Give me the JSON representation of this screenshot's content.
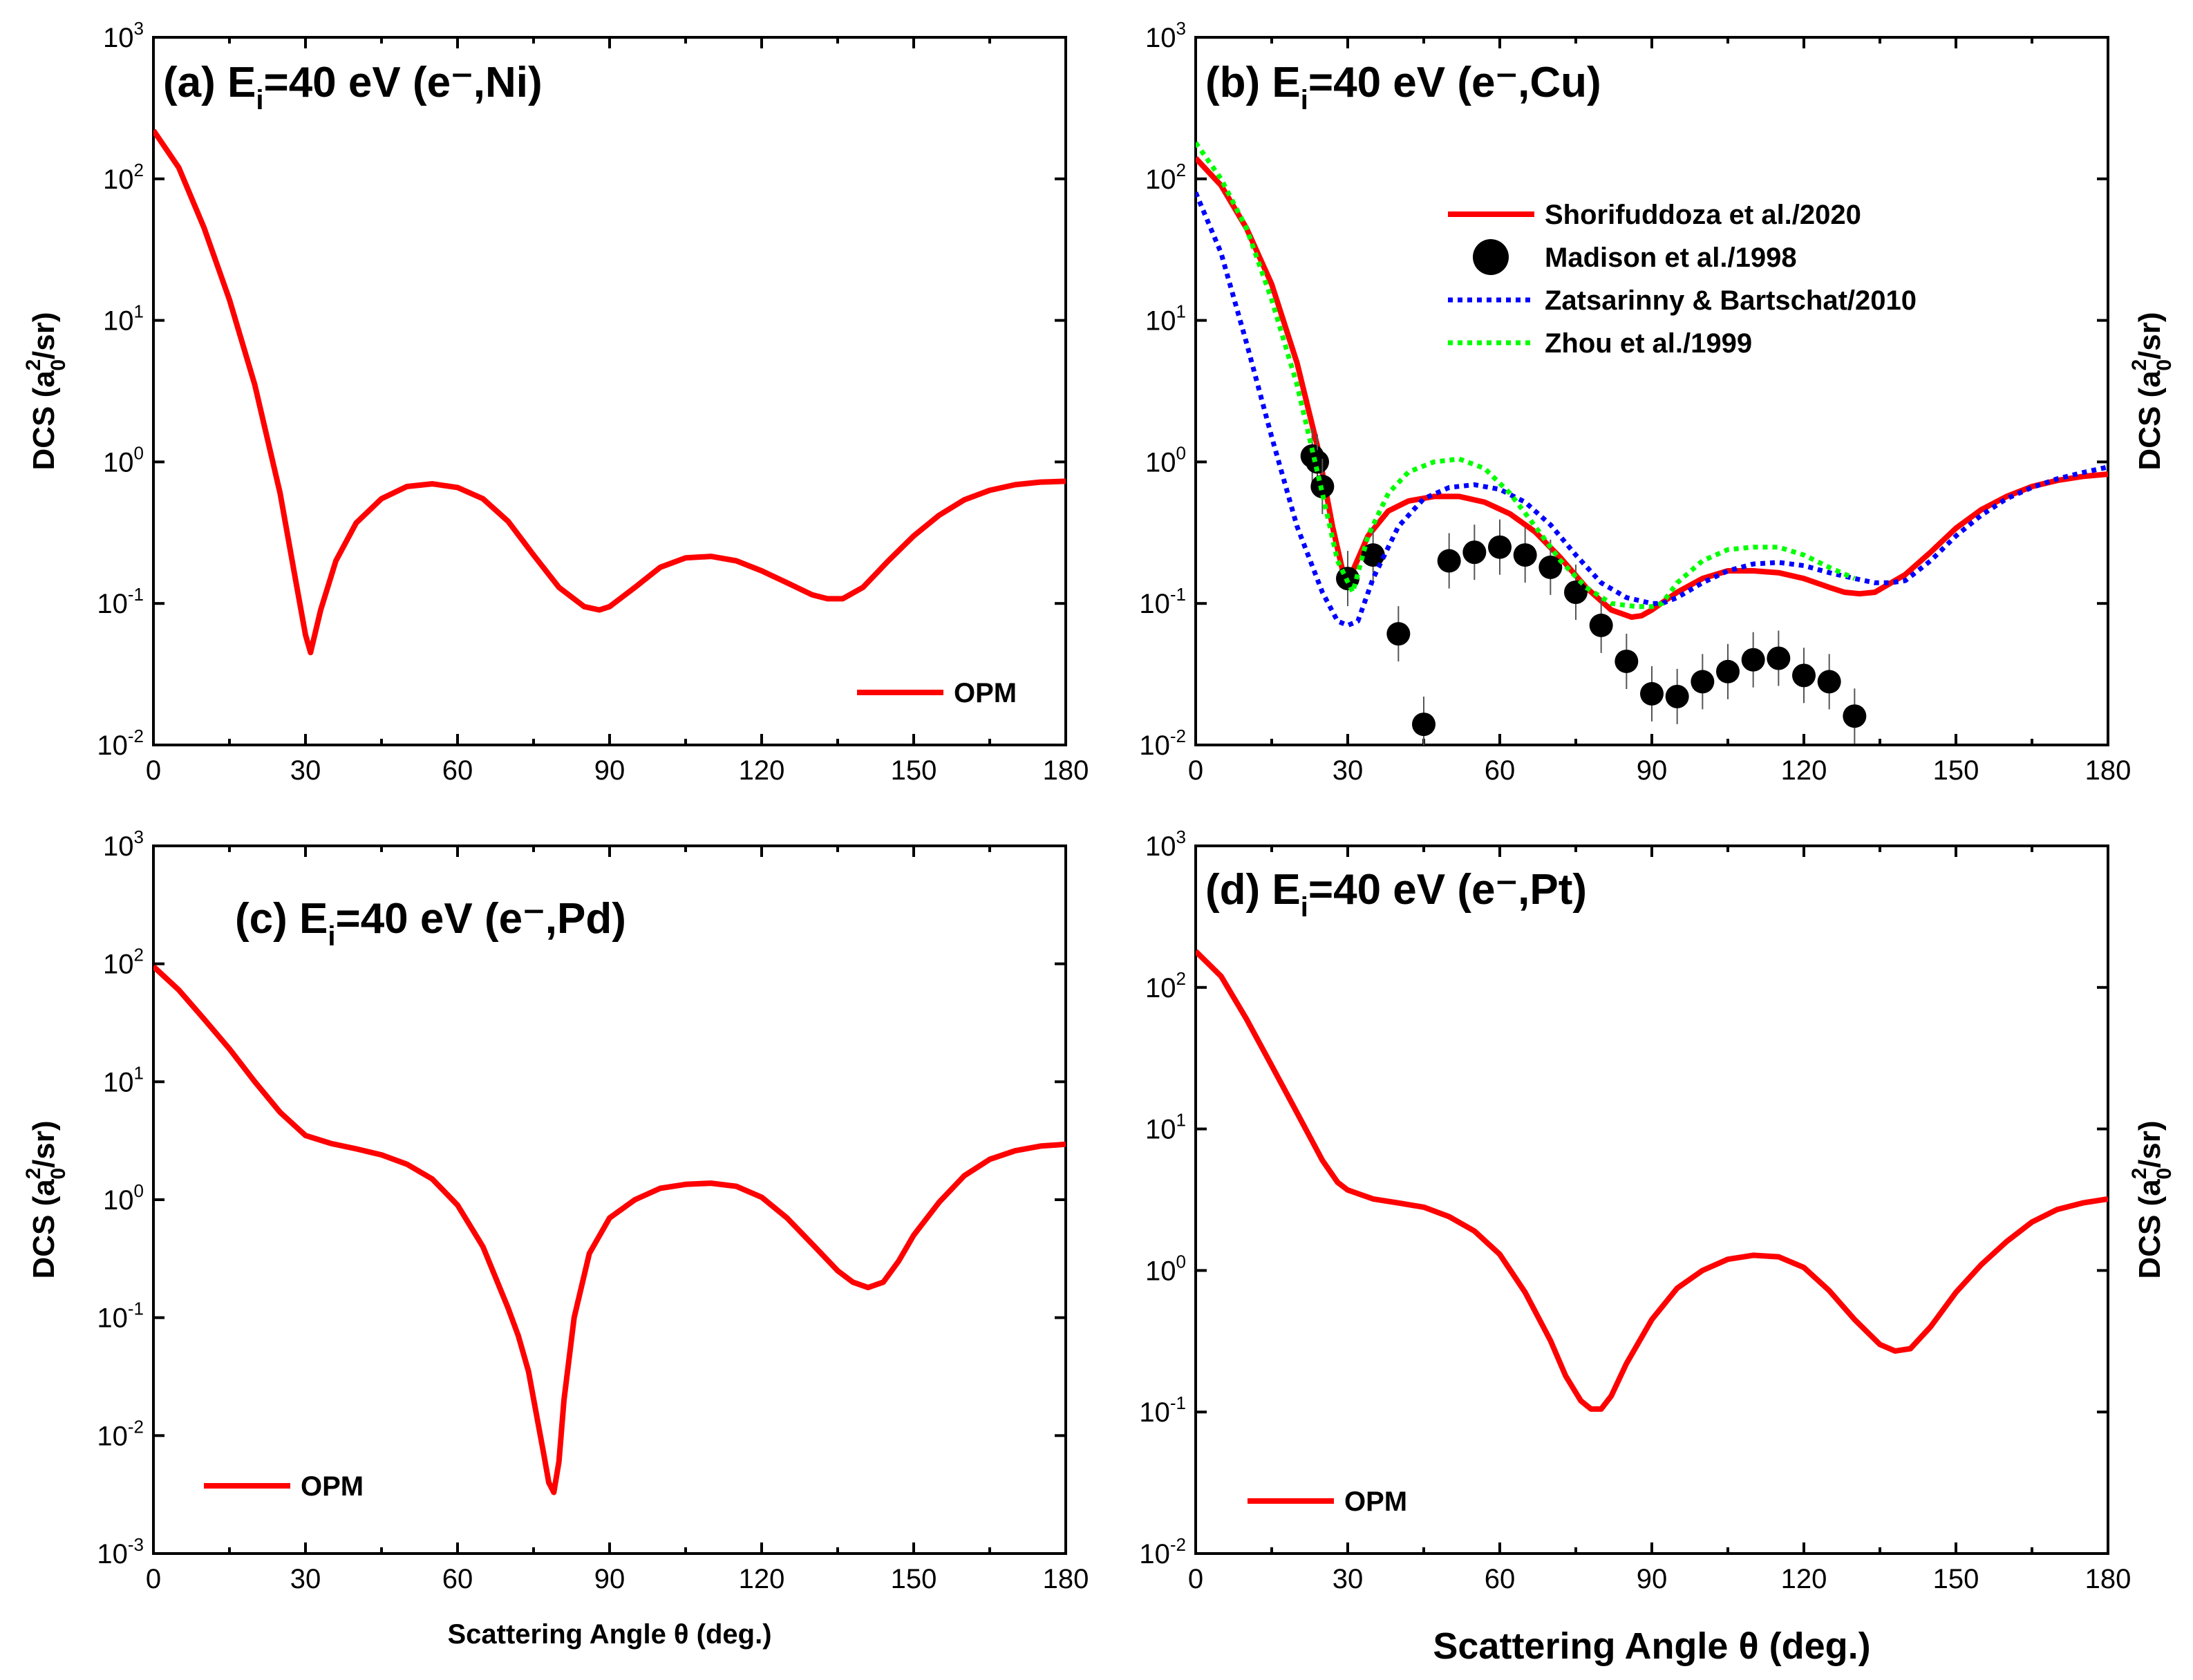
{
  "chart_data": [
    {
      "type": "line",
      "panel": "a",
      "title_prefix": "(a) E",
      "title_sub": "i",
      "title_suffix": "=40 eV (e⁻,Ni)",
      "xlabel": "",
      "ylabel": "DCS (a",
      "ylabel_sub": "0",
      "ylabel_sup": "2",
      "ylabel_end": "/sr)",
      "xlim": [
        0,
        180
      ],
      "ylim": [
        0.01,
        1000
      ],
      "yscale": "log",
      "xticks": [
        "0",
        "30",
        "60",
        "90",
        "120",
        "150",
        "180"
      ],
      "yticks": [
        {
          "base": "10",
          "exp": "-2"
        },
        {
          "base": "10",
          "exp": "-1"
        },
        {
          "base": "10",
          "exp": "0"
        },
        {
          "base": "10",
          "exp": "1"
        },
        {
          "base": "10",
          "exp": "2"
        },
        {
          "base": "10",
          "exp": "3"
        }
      ],
      "legend_position": "bottom-right",
      "series": [
        {
          "name": "OPM",
          "color": "#ff0000",
          "style": "solid",
          "x": [
            0,
            5,
            10,
            15,
            20,
            25,
            28,
            30,
            31,
            33,
            36,
            40,
            45,
            50,
            55,
            60,
            65,
            70,
            75,
            80,
            85,
            88,
            90,
            95,
            100,
            105,
            110,
            115,
            120,
            125,
            130,
            133,
            136,
            140,
            145,
            150,
            155,
            160,
            165,
            170,
            175,
            180
          ],
          "y": [
            220,
            120,
            45,
            14,
            3.5,
            0.6,
            0.15,
            0.06,
            0.045,
            0.09,
            0.2,
            0.37,
            0.55,
            0.67,
            0.7,
            0.66,
            0.55,
            0.38,
            0.22,
            0.13,
            0.095,
            0.09,
            0.095,
            0.13,
            0.18,
            0.21,
            0.215,
            0.2,
            0.17,
            0.14,
            0.115,
            0.108,
            0.108,
            0.13,
            0.2,
            0.3,
            0.42,
            0.54,
            0.63,
            0.69,
            0.72,
            0.73
          ]
        }
      ]
    },
    {
      "type": "line",
      "panel": "b",
      "title_prefix": "(b) E",
      "title_sub": "i",
      "title_suffix": "=40 eV (e⁻,Cu)",
      "xlabel": "",
      "ylabel": "DCS (a",
      "ylabel_sub": "0",
      "ylabel_sup": "2",
      "ylabel_end": "/sr)",
      "xlim": [
        0,
        180
      ],
      "ylim": [
        0.01,
        1000
      ],
      "yscale": "log",
      "xticks": [
        "0",
        "30",
        "60",
        "90",
        "120",
        "150",
        "180"
      ],
      "yticks": [
        {
          "base": "10",
          "exp": "-2"
        },
        {
          "base": "10",
          "exp": "-1"
        },
        {
          "base": "10",
          "exp": "0"
        },
        {
          "base": "10",
          "exp": "1"
        },
        {
          "base": "10",
          "exp": "2"
        },
        {
          "base": "10",
          "exp": "3"
        }
      ],
      "legend_position": "top-right",
      "series": [
        {
          "name": "Shorifuddoza et al./2020",
          "color": "#ff0000",
          "style": "solid",
          "x": [
            0,
            5,
            10,
            15,
            20,
            24,
            27,
            29,
            31,
            34,
            38,
            42,
            47,
            52,
            57,
            62,
            67,
            72,
            77,
            82,
            86,
            88,
            90,
            95,
            100,
            105,
            110,
            115,
            120,
            125,
            128,
            131,
            134,
            140,
            145,
            150,
            155,
            160,
            165,
            170,
            175,
            180
          ],
          "y": [
            140,
            90,
            45,
            18,
            5,
            1.3,
            0.35,
            0.17,
            0.17,
            0.3,
            0.45,
            0.53,
            0.57,
            0.57,
            0.52,
            0.43,
            0.32,
            0.21,
            0.13,
            0.09,
            0.08,
            0.082,
            0.09,
            0.12,
            0.15,
            0.17,
            0.17,
            0.165,
            0.15,
            0.13,
            0.12,
            0.117,
            0.12,
            0.16,
            0.23,
            0.34,
            0.46,
            0.57,
            0.67,
            0.74,
            0.79,
            0.82
          ]
        },
        {
          "name": "Madison et al./1998",
          "color": "#000000",
          "style": "marker",
          "x": [
            23,
            24,
            25,
            30,
            35,
            40,
            45,
            50,
            55,
            60,
            65,
            70,
            75,
            80,
            85,
            90,
            95,
            100,
            105,
            110,
            115,
            120,
            125,
            130
          ],
          "y": [
            1.1,
            1.0,
            0.67,
            0.15,
            0.22,
            0.061,
            0.014,
            0.2,
            0.23,
            0.25,
            0.22,
            0.18,
            0.12,
            0.07,
            0.039,
            0.023,
            0.022,
            0.028,
            0.033,
            0.04,
            0.041,
            0.031,
            0.028,
            0.016
          ]
        },
        {
          "name": "Zatsarinny & Bartschat/2010",
          "color": "#0000ff",
          "style": "dotted",
          "x": [
            0,
            5,
            10,
            15,
            20,
            25,
            28,
            30,
            32,
            35,
            40,
            45,
            50,
            55,
            60,
            65,
            70,
            75,
            80,
            85,
            90,
            92,
            95,
            100,
            105,
            110,
            115,
            120,
            125,
            130,
            134,
            137,
            140,
            145,
            150,
            155,
            160,
            165,
            170,
            175,
            180
          ],
          "y": [
            80,
            30,
            7,
            1.5,
            0.35,
            0.12,
            0.075,
            0.07,
            0.075,
            0.15,
            0.35,
            0.55,
            0.66,
            0.69,
            0.64,
            0.52,
            0.36,
            0.22,
            0.14,
            0.11,
            0.1,
            0.1,
            0.11,
            0.14,
            0.17,
            0.19,
            0.195,
            0.185,
            0.165,
            0.15,
            0.14,
            0.14,
            0.145,
            0.2,
            0.3,
            0.42,
            0.55,
            0.66,
            0.76,
            0.84,
            0.92
          ]
        },
        {
          "name": "Zhou et al./1999",
          "color": "#00ff00",
          "style": "dotted",
          "x": [
            0,
            5,
            10,
            15,
            20,
            25,
            28,
            31,
            34,
            38,
            42,
            47,
            52,
            57,
            62,
            67,
            72,
            77,
            82,
            87,
            90,
            92,
            95,
            100,
            105,
            110,
            115,
            120,
            125,
            130
          ],
          "y": [
            180,
            100,
            45,
            14,
            3.5,
            0.6,
            0.2,
            0.12,
            0.3,
            0.6,
            0.85,
            1.0,
            1.05,
            0.9,
            0.6,
            0.35,
            0.2,
            0.13,
            0.1,
            0.095,
            0.095,
            0.1,
            0.14,
            0.2,
            0.24,
            0.25,
            0.25,
            0.22,
            0.18,
            0.15
          ]
        }
      ]
    },
    {
      "type": "line",
      "panel": "c",
      "title_prefix": "(c) E",
      "title_sub": "i",
      "title_suffix": "=40 eV (e⁻,Pd)",
      "xlabel": "Scattering Angle θ (deg.)",
      "ylabel": "DCS (a",
      "ylabel_sub": "0",
      "ylabel_sup": "2",
      "ylabel_end": "/sr)",
      "xlim": [
        0,
        180
      ],
      "ylim": [
        0.001,
        1000
      ],
      "yscale": "log",
      "xticks": [
        "0",
        "30",
        "60",
        "90",
        "120",
        "150",
        "180"
      ],
      "yticks": [
        {
          "base": "10",
          "exp": "-3"
        },
        {
          "base": "10",
          "exp": "-2"
        },
        {
          "base": "10",
          "exp": "-1"
        },
        {
          "base": "10",
          "exp": "0"
        },
        {
          "base": "10",
          "exp": "1"
        },
        {
          "base": "10",
          "exp": "2"
        },
        {
          "base": "10",
          "exp": "3"
        }
      ],
      "legend_position": "bottom-left",
      "series": [
        {
          "name": "OPM",
          "color": "#ff0000",
          "style": "solid",
          "x": [
            0,
            5,
            10,
            15,
            20,
            25,
            30,
            35,
            40,
            45,
            50,
            55,
            60,
            65,
            70,
            72,
            74,
            76,
            77,
            78,
            79,
            80,
            81,
            83,
            86,
            90,
            95,
            100,
            105,
            110,
            115,
            120,
            125,
            130,
            135,
            138,
            141,
            144,
            147,
            150,
            155,
            160,
            165,
            170,
            175,
            180
          ],
          "y": [
            95,
            60,
            34,
            19,
            10,
            5.5,
            3.5,
            3,
            2.7,
            2.4,
            2,
            1.5,
            0.9,
            0.4,
            0.12,
            0.07,
            0.035,
            0.012,
            0.007,
            0.004,
            0.0033,
            0.006,
            0.02,
            0.1,
            0.35,
            0.7,
            1.0,
            1.25,
            1.35,
            1.38,
            1.3,
            1.05,
            0.7,
            0.42,
            0.25,
            0.2,
            0.18,
            0.2,
            0.3,
            0.5,
            0.95,
            1.6,
            2.2,
            2.6,
            2.85,
            2.95
          ]
        }
      ]
    },
    {
      "type": "line",
      "panel": "d",
      "title_prefix": "(d) E",
      "title_sub": "i",
      "title_suffix": "=40 eV (e⁻,Pt)",
      "xlabel": "Scattering Angle θ (deg.)",
      "ylabel": "DCS (a",
      "ylabel_sub": "0",
      "ylabel_sup": "2",
      "ylabel_end": "/sr)",
      "xlim": [
        0,
        180
      ],
      "ylim": [
        0.01,
        1000
      ],
      "yscale": "log",
      "xticks": [
        "0",
        "30",
        "60",
        "90",
        "120",
        "150",
        "180"
      ],
      "yticks": [
        {
          "base": "10",
          "exp": "-2"
        },
        {
          "base": "10",
          "exp": "-1"
        },
        {
          "base": "10",
          "exp": "0"
        },
        {
          "base": "10",
          "exp": "1"
        },
        {
          "base": "10",
          "exp": "2"
        },
        {
          "base": "10",
          "exp": "3"
        }
      ],
      "legend_position": "bottom-left",
      "series": [
        {
          "name": "OPM",
          "color": "#ff0000",
          "style": "solid",
          "x": [
            0,
            5,
            10,
            15,
            20,
            25,
            28,
            30,
            35,
            40,
            45,
            50,
            55,
            60,
            65,
            70,
            73,
            76,
            78,
            80,
            82,
            85,
            90,
            95,
            100,
            105,
            110,
            115,
            120,
            125,
            130,
            135,
            138,
            141,
            145,
            150,
            155,
            160,
            165,
            170,
            175,
            180
          ],
          "y": [
            180,
            120,
            60,
            28,
            13,
            6,
            4.2,
            3.7,
            3.2,
            3,
            2.8,
            2.4,
            1.9,
            1.3,
            0.7,
            0.32,
            0.18,
            0.12,
            0.105,
            0.105,
            0.13,
            0.22,
            0.45,
            0.75,
            1.0,
            1.2,
            1.28,
            1.25,
            1.05,
            0.72,
            0.45,
            0.3,
            0.27,
            0.28,
            0.4,
            0.7,
            1.1,
            1.6,
            2.2,
            2.7,
            3,
            3.2
          ]
        }
      ]
    }
  ]
}
